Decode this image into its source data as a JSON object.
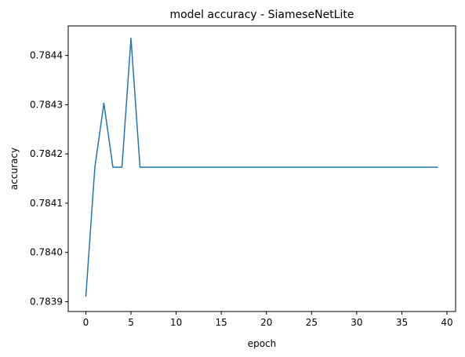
{
  "chart_data": {
    "type": "line",
    "title": "model accuracy - SiameseNetLite",
    "xlabel": "epoch",
    "ylabel": "accuracy",
    "xlim": [
      -1.95,
      40.95
    ],
    "ylim": [
      0.78388,
      0.78446
    ],
    "xticks": [
      0,
      5,
      10,
      15,
      20,
      25,
      30,
      35,
      40
    ],
    "xtick_labels": [
      "0",
      "5",
      "10",
      "15",
      "20",
      "25",
      "30",
      "35",
      "40"
    ],
    "yticks": [
      0.7839,
      0.784,
      0.7841,
      0.7842,
      0.7843,
      0.7844
    ],
    "ytick_labels": [
      "0.7839",
      "0.7840",
      "0.7841",
      "0.7842",
      "0.7843",
      "0.7844"
    ],
    "grid": false,
    "line_color": "#1f77b4",
    "series": [
      {
        "x": [
          0,
          1,
          2,
          3,
          4,
          5,
          6,
          7,
          8,
          9,
          10,
          11,
          12,
          13,
          14,
          15,
          16,
          17,
          18,
          19,
          20,
          21,
          22,
          23,
          24,
          25,
          26,
          27,
          28,
          29,
          30,
          31,
          32,
          33,
          34,
          35,
          36,
          37,
          38,
          39
        ],
        "values": [
          0.78391,
          0.784173,
          0.784303,
          0.784173,
          0.784173,
          0.784435,
          0.784173,
          0.784173,
          0.784173,
          0.784173,
          0.784173,
          0.784173,
          0.784173,
          0.784173,
          0.784173,
          0.784173,
          0.784173,
          0.784173,
          0.784173,
          0.784173,
          0.784173,
          0.784173,
          0.784173,
          0.784173,
          0.784173,
          0.784173,
          0.784173,
          0.784173,
          0.784173,
          0.784173,
          0.784173,
          0.784173,
          0.784173,
          0.784173,
          0.784173,
          0.784173,
          0.784173,
          0.784173,
          0.784173,
          0.784173
        ]
      }
    ]
  }
}
